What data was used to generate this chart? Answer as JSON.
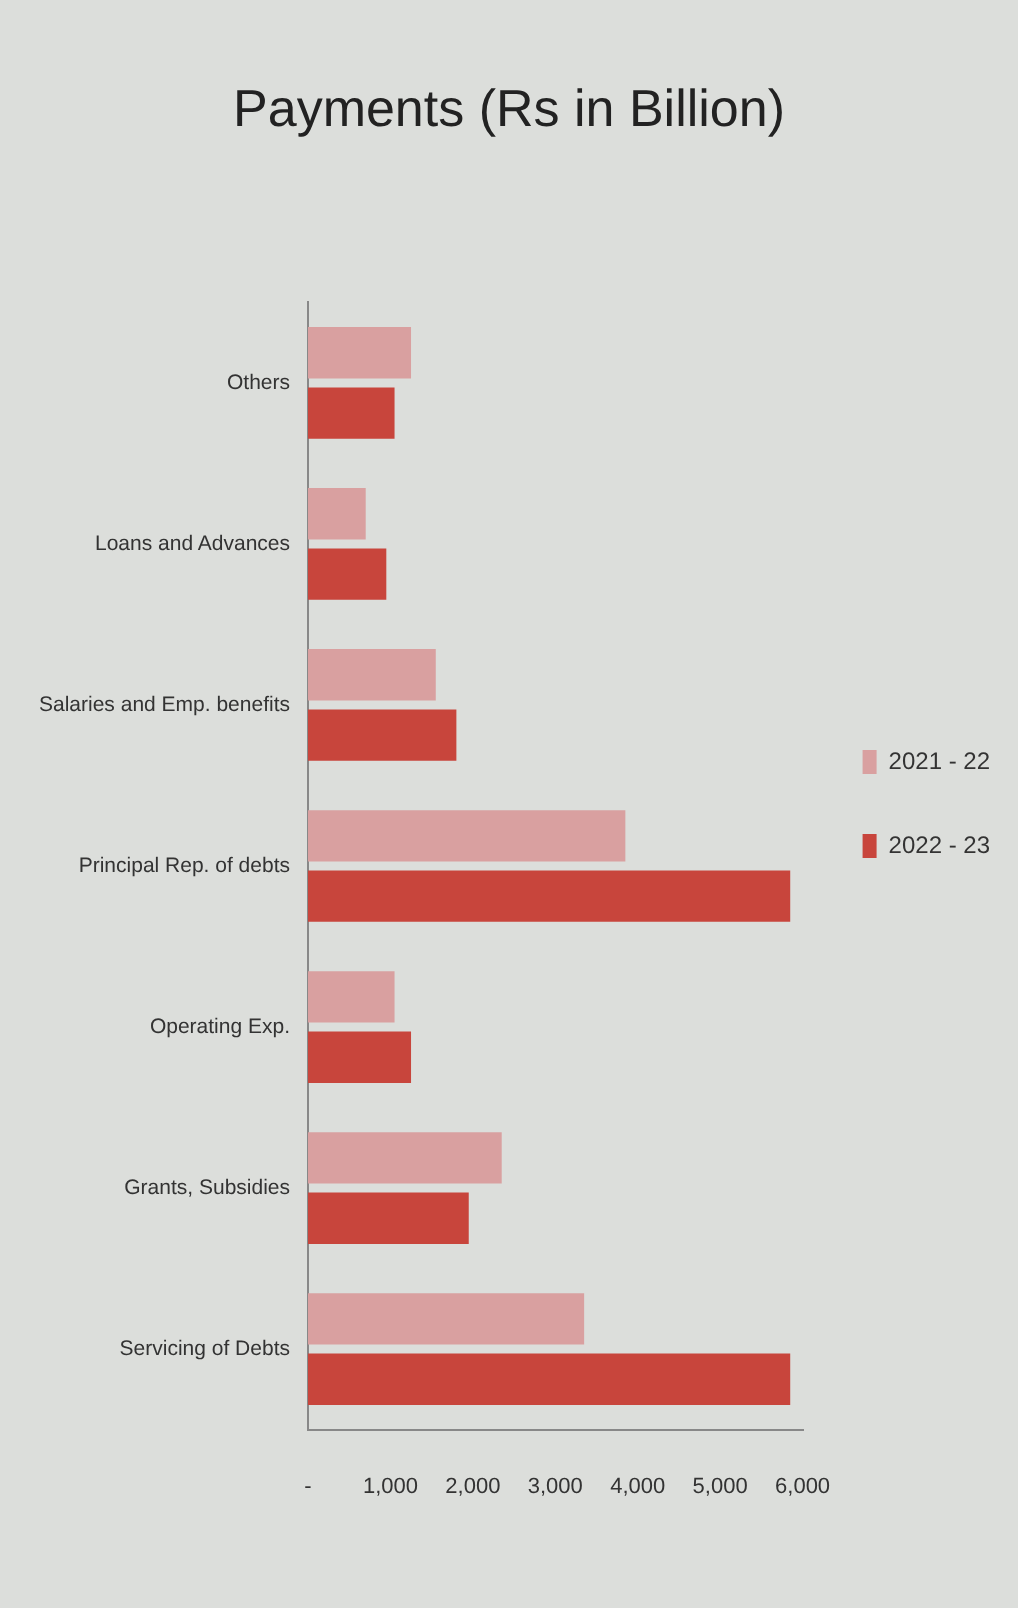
{
  "chart_data": {
    "type": "bar",
    "orientation": "horizontal",
    "title": "Payments (Rs in Billion)",
    "categories": [
      "Others",
      "Loans and Advances",
      "Salaries and Emp. benefits",
      "Principal Rep. of debts",
      "Operating Exp.",
      "Grants, Subsidies",
      "Servicing of Debts"
    ],
    "series": [
      {
        "name": "2021 - 22",
        "color": "#d9a0a0",
        "values": [
          1250,
          700,
          1550,
          3850,
          1050,
          2350,
          3350
        ]
      },
      {
        "name": "2022 - 23",
        "color": "#c8453c",
        "values": [
          1050,
          950,
          1800,
          5850,
          1250,
          1950,
          5850
        ]
      }
    ],
    "xlim": [
      0,
      6000
    ],
    "xticks": [
      {
        "value": 0,
        "label": "-"
      },
      {
        "value": 1000,
        "label": "1,000"
      },
      {
        "value": 2000,
        "label": "2,000"
      },
      {
        "value": 3000,
        "label": "3,000"
      },
      {
        "value": 4000,
        "label": "4,000"
      },
      {
        "value": 5000,
        "label": "5,000"
      },
      {
        "value": 6000,
        "label": "6,000"
      }
    ],
    "grid": false,
    "legend": "right"
  }
}
